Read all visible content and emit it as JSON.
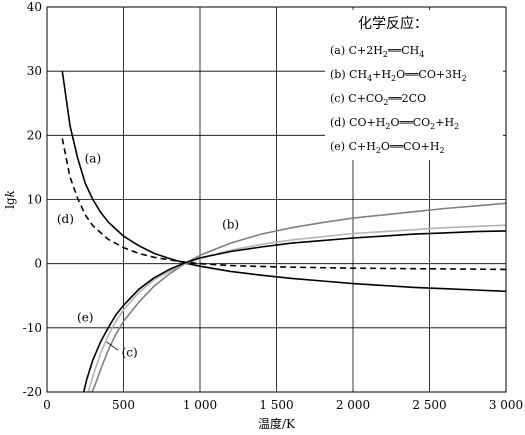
{
  "chart_data": {
    "type": "line",
    "xlabel": "温度/K",
    "ylabel": "lgk",
    "xlim": [
      0,
      3000
    ],
    "ylim": [
      -20,
      40
    ],
    "x_ticks": [
      0,
      500,
      1000,
      1500,
      2000,
      2500,
      3000
    ],
    "x_tick_labels": [
      "0",
      "500",
      "1 000",
      "1 500",
      "2 000",
      "2 500",
      "3 000"
    ],
    "y_ticks": [
      -20,
      -10,
      0,
      10,
      20,
      30,
      40
    ],
    "y_tick_labels": [
      "-20",
      "-10",
      "0",
      "10",
      "20",
      "30",
      "40"
    ],
    "grid": true,
    "legend": {
      "title": "化学反应：",
      "placement": "top-right",
      "entries": [
        {
          "id": "a",
          "label": "(a)",
          "eq": [
            [
              "C+2H",
              ""
            ],
            [
              "2",
              "sub"
            ],
            [
              "══CH",
              ""
            ],
            [
              "4",
              "sub"
            ]
          ]
        },
        {
          "id": "b",
          "label": "(b)",
          "eq": [
            [
              "CH",
              ""
            ],
            [
              "4",
              "sub"
            ],
            [
              "+H",
              ""
            ],
            [
              "2",
              "sub"
            ],
            [
              "O══CO+3H",
              ""
            ],
            [
              "2",
              "sub"
            ]
          ]
        },
        {
          "id": "c",
          "label": "(c)",
          "eq": [
            [
              "C+CO",
              ""
            ],
            [
              "2",
              "sub"
            ],
            [
              "══2CO",
              ""
            ]
          ]
        },
        {
          "id": "d",
          "label": "(d)",
          "eq": [
            [
              "CO+H",
              ""
            ],
            [
              "2",
              "sub"
            ],
            [
              "O══CO",
              ""
            ],
            [
              "2",
              "sub"
            ],
            [
              "+H",
              ""
            ],
            [
              "2",
              "sub"
            ]
          ]
        },
        {
          "id": "e",
          "label": "(e)",
          "eq": [
            [
              "C+H",
              ""
            ],
            [
              "2",
              "sub"
            ],
            [
              "O══CO+H",
              ""
            ],
            [
              "2",
              "sub"
            ]
          ]
        }
      ]
    },
    "series": [
      {
        "id": "a",
        "label": "(a)",
        "color": "#000000",
        "dash": "",
        "x": [
          100,
          150,
          200,
          250,
          300,
          350,
          400,
          500,
          600,
          700,
          800,
          900,
          1000,
          1200,
          1400,
          1600,
          1800,
          2000,
          2200,
          2400,
          2600,
          2800,
          3000
        ],
        "y": [
          30,
          21.5,
          16.5,
          12.5,
          10,
          8,
          6.5,
          4.3,
          2.8,
          1.6,
          0.8,
          0.1,
          -0.4,
          -1.2,
          -1.8,
          -2.3,
          -2.7,
          -3.1,
          -3.4,
          -3.7,
          -3.9,
          -4.1,
          -4.3
        ]
      },
      {
        "id": "b",
        "label": "(b)",
        "color": "#808080",
        "dash": "",
        "x": [
          295,
          320,
          350,
          400,
          450,
          500,
          600,
          700,
          800,
          900,
          1000,
          1200,
          1400,
          1600,
          1800,
          2000,
          2200,
          2400,
          2600,
          2800,
          3000
        ],
        "y": [
          -20,
          -18.5,
          -16.5,
          -13.5,
          -11,
          -9,
          -6,
          -3.5,
          -1.6,
          0,
          1.3,
          3.2,
          4.6,
          5.6,
          6.4,
          7.1,
          7.6,
          8.1,
          8.6,
          9,
          9.4
        ]
      },
      {
        "id": "c",
        "label": "(c)",
        "color": "#b4b4b4",
        "dash": "",
        "x": [
          270,
          300,
          350,
          400,
          450,
          500,
          600,
          700,
          800,
          900,
          1000,
          1200,
          1400,
          1600,
          1800,
          2000,
          2200,
          2400,
          2600,
          2800,
          3000
        ],
        "y": [
          -20,
          -17.5,
          -14,
          -11.2,
          -9,
          -7.2,
          -4.5,
          -2.5,
          -1.2,
          0,
          0.8,
          2.1,
          3.0,
          3.7,
          4.2,
          4.7,
          5.0,
          5.3,
          5.6,
          5.8,
          6.0
        ]
      },
      {
        "id": "d",
        "label": "(d)",
        "color": "#000000",
        "dash": "6,4",
        "x": [
          100,
          150,
          200,
          250,
          300,
          400,
          500,
          600,
          700,
          800,
          900,
          1000,
          1200,
          1500,
          2000,
          2500,
          3000
        ],
        "y": [
          19.5,
          13.5,
          10.2,
          7.6,
          5.9,
          3.8,
          2.5,
          1.6,
          1.0,
          0.6,
          0.25,
          0,
          -0.3,
          -0.5,
          -0.7,
          -0.8,
          -0.9
        ]
      },
      {
        "id": "e",
        "label": "(e)",
        "color": "#000000",
        "dash": "",
        "x": [
          240,
          260,
          300,
          350,
          400,
          450,
          500,
          600,
          700,
          800,
          900,
          1000,
          1200,
          1400,
          1600,
          1800,
          2000,
          2200,
          2400,
          2600,
          2800,
          3000
        ],
        "y": [
          -20,
          -18,
          -15,
          -12.2,
          -10,
          -8,
          -6.5,
          -4,
          -2.2,
          -0.9,
          0.1,
          0.9,
          1.9,
          2.6,
          3.2,
          3.6,
          4.0,
          4.3,
          4.6,
          4.8,
          5.0,
          5.1
        ]
      }
    ]
  }
}
